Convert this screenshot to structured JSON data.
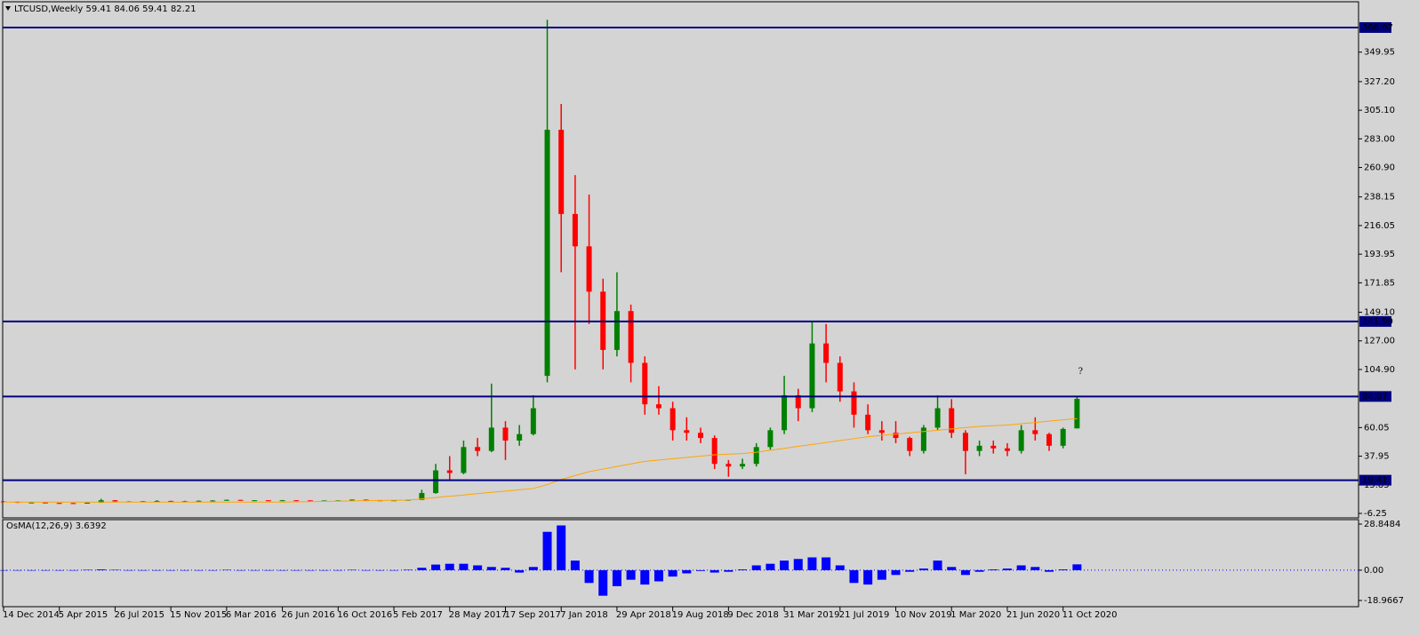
{
  "chart_data": [
    {
      "type": "candlestick",
      "title": "LTCUSD,Weekly  59.41 84.06 59.41 82.21",
      "annotation": "?",
      "categories": [
        "14 Dec 2014",
        null,
        null,
        null,
        "5 Apr 2015",
        null,
        null,
        null,
        "26 Jul 2015",
        null,
        null,
        null,
        "15 Nov 2015",
        null,
        null,
        null,
        "6 Mar 2016",
        null,
        null,
        null,
        "26 Jun 2016",
        null,
        null,
        null,
        "16 Oct 2016",
        null,
        null,
        null,
        "5 Feb 2017",
        null,
        null,
        null,
        "28 May 2017",
        null,
        null,
        null,
        "17 Sep 2017",
        null,
        null,
        null,
        "7 Jan 2018",
        null,
        null,
        null,
        "29 Apr 2018",
        null,
        null,
        null,
        "19 Aug 2018",
        null,
        null,
        null,
        "9 Dec 2018",
        null,
        null,
        null,
        "31 Mar 2019",
        null,
        null,
        null,
        "21 Jul 2019",
        null,
        null,
        null,
        "10 Nov 2019",
        null,
        null,
        null,
        "1 Mar 2020",
        null,
        null,
        null,
        "21 Jun 2020",
        null,
        null,
        null,
        "11 Oct 2020",
        null
      ],
      "open": [
        3.0,
        2.7,
        2.1,
        2.2,
        1.8,
        1.7,
        1.6,
        2.0,
        3.9,
        3.0,
        2.9,
        3.2,
        3.4,
        3.2,
        3.1,
        3.5,
        3.7,
        4.2,
        3.8,
        3.9,
        3.8,
        3.9,
        3.8,
        3.6,
        3.7,
        3.8,
        4.4,
        3.9,
        3.8,
        3.9,
        4.2,
        9.5,
        27,
        25,
        45,
        42,
        60,
        50,
        55,
        100,
        290,
        225,
        200,
        165,
        120,
        150,
        110,
        78,
        75,
        58,
        56,
        52,
        32,
        30,
        32,
        45,
        58,
        85,
        75,
        125,
        110,
        88,
        70,
        58,
        56,
        52,
        42,
        60,
        75,
        56,
        42,
        46,
        44,
        42,
        58,
        55,
        46,
        59.41
      ],
      "high": [
        3.3,
        2.9,
        2.4,
        2.3,
        2.0,
        1.9,
        2.2,
        5.0,
        4.1,
        3.2,
        3.3,
        4.0,
        3.6,
        3.5,
        3.8,
        4.0,
        4.5,
        4.3,
        4.0,
        4.0,
        4.1,
        4.0,
        3.9,
        3.8,
        3.9,
        4.6,
        4.5,
        4.1,
        4.0,
        4.5,
        12,
        32,
        38,
        50,
        52,
        94,
        65,
        62,
        85,
        375,
        310,
        255,
        240,
        175,
        180,
        155,
        115,
        92,
        80,
        68,
        60,
        54,
        35,
        36,
        48,
        60,
        100,
        90,
        142,
        140,
        115,
        95,
        78,
        65,
        65,
        53,
        62,
        85,
        82,
        58,
        50,
        50,
        48,
        62,
        68,
        56,
        60,
        84.06
      ],
      "low": [
        2.5,
        1.8,
        1.9,
        1.7,
        1.6,
        1.5,
        1.5,
        1.9,
        2.8,
        2.7,
        2.8,
        2.9,
        3.0,
        3.0,
        3.0,
        3.2,
        3.6,
        3.6,
        3.6,
        3.7,
        3.6,
        3.7,
        3.4,
        3.4,
        3.6,
        3.7,
        3.8,
        3.7,
        3.7,
        3.8,
        4.1,
        9,
        20,
        24,
        38,
        41,
        35,
        46,
        54,
        95,
        180,
        105,
        140,
        105,
        115,
        95,
        70,
        70,
        50,
        50,
        48,
        28,
        22,
        28,
        30,
        43,
        55,
        65,
        72,
        95,
        80,
        60,
        55,
        50,
        48,
        38,
        40,
        58,
        52,
        24,
        38,
        40,
        38,
        40,
        50,
        42,
        44,
        59.41
      ],
      "close": [
        2.7,
        2.1,
        2.2,
        1.8,
        1.7,
        1.6,
        2.0,
        3.9,
        3.0,
        2.9,
        3.2,
        3.4,
        3.2,
        3.1,
        3.5,
        3.7,
        4.2,
        3.8,
        3.9,
        3.8,
        3.9,
        3.8,
        3.6,
        3.7,
        3.8,
        4.4,
        3.9,
        3.8,
        3.9,
        4.2,
        9.5,
        27,
        25,
        45,
        42,
        60,
        50,
        55,
        75,
        290,
        225,
        200,
        165,
        120,
        150,
        110,
        78,
        75,
        58,
        56,
        52,
        32,
        30,
        32,
        45,
        58,
        85,
        75,
        125,
        110,
        88,
        70,
        58,
        56,
        52,
        42,
        60,
        75,
        56,
        42,
        46,
        44,
        42,
        58,
        55,
        46,
        59,
        82.21
      ],
      "up_color": "#008000",
      "down_color": "#ff0000",
      "ma": {
        "color": "#ffa500",
        "values": [
          2.5,
          2.5,
          2.5,
          2.5,
          2.5,
          2.5,
          2.5,
          2.5,
          2.5,
          2.5,
          2.5,
          2.5,
          2.5,
          2.5,
          2.5,
          2.5,
          2.5,
          2.5,
          2.5,
          2.5,
          2.5,
          2.7,
          2.8,
          3.0,
          3.2,
          3.4,
          3.6,
          3.8,
          3.9,
          4,
          5,
          6,
          7,
          8,
          9,
          10,
          11,
          12,
          13,
          16,
          20,
          23,
          26,
          28,
          30,
          32,
          34,
          35,
          36,
          37,
          38,
          39,
          39.5,
          40,
          41,
          42.5,
          44,
          45.5,
          47,
          48.5,
          50,
          51.5,
          53,
          54,
          55,
          56,
          57,
          58,
          59,
          60,
          61,
          61.5,
          62,
          63,
          64,
          65,
          66,
          67
        ]
      },
      "levels": {
        "color": "#000080",
        "values": [
          368.97,
          141.99,
          84.07,
          19.41
        ]
      },
      "ylim": [
        -9.68,
        388.86
      ],
      "yticks": [
        349.95,
        {
          "value": 327.2,
          "label": "327.20"
        },
        {
          "value": 305.1,
          "label": "305.10"
        },
        {
          "value": 283,
          "label": "283.00"
        },
        {
          "value": 260.9,
          "label": "260.90"
        },
        238.15,
        216.05,
        193.95,
        171.85,
        {
          "value": 149.1,
          "label": "149.10"
        },
        {
          "value": 127,
          "label": "127.00"
        },
        {
          "value": 104.9,
          "label": "104.90"
        },
        60.05,
        37.95,
        15.85,
        -6.25
      ]
    },
    {
      "type": "bar",
      "title": "OsMA(12,26,9) 3.6392",
      "color": "#0000ff",
      "values": [
        0,
        0,
        0,
        0,
        0,
        0,
        0.2,
        0.5,
        0.2,
        0,
        0,
        0,
        0,
        0,
        0,
        0,
        0.2,
        0,
        0,
        0,
        0,
        0,
        0,
        0,
        0,
        0.2,
        0,
        0,
        0,
        0.3,
        1.5,
        3.5,
        4,
        4,
        3,
        2,
        1.5,
        -1.5,
        2,
        24,
        28,
        6,
        -8,
        -16,
        -10,
        -6,
        -9,
        -7,
        -4,
        -2,
        -0.5,
        -1.5,
        -1,
        0.5,
        3,
        4,
        6,
        7,
        8,
        8,
        3,
        -8,
        -9,
        -6,
        -3,
        -1,
        1,
        6,
        2,
        -3,
        -1,
        0.5,
        1,
        3,
        2,
        -1,
        0.5,
        3.6392
      ],
      "ylim": [
        -22.86,
        31.63
      ],
      "yticks": [
        28.8484,
        {
          "value": 0,
          "label": "0.00"
        },
        -18.9667
      ]
    }
  ]
}
